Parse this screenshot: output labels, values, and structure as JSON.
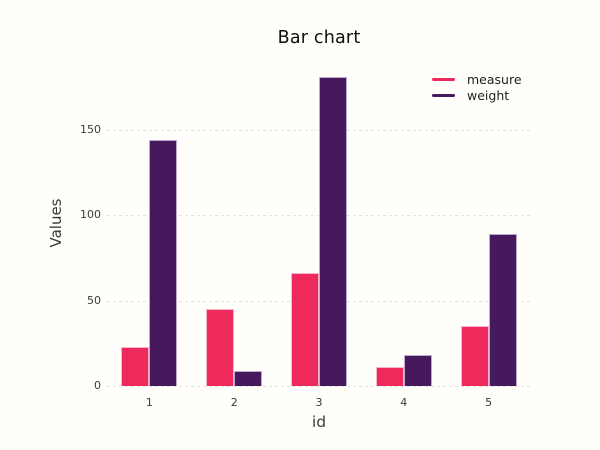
{
  "chart_data": {
    "type": "bar",
    "title": "Bar chart",
    "xlabel": "id",
    "ylabel": "Values",
    "categories": [
      "1",
      "2",
      "3",
      "4",
      "5"
    ],
    "series": [
      {
        "name": "measure",
        "color": "#ee2a5d",
        "edge_color": "#f8b7ca",
        "values": [
          23,
          45,
          66,
          11,
          35
        ]
      },
      {
        "name": "weight",
        "color": "#46185c",
        "edge_color": "#bfa8d2",
        "values": [
          144,
          9,
          181,
          18,
          89
        ]
      }
    ],
    "yticks": [
      0,
      50,
      100,
      150
    ],
    "ylim": [
      0,
      191
    ],
    "grid": "horizontal-dashed",
    "legend_position": "top-right",
    "colors": {
      "background": "#fffefb",
      "grid_line": "#e4e4e4",
      "title_text": "#0f0f0f",
      "axis_text": "#3a3a3a"
    }
  }
}
